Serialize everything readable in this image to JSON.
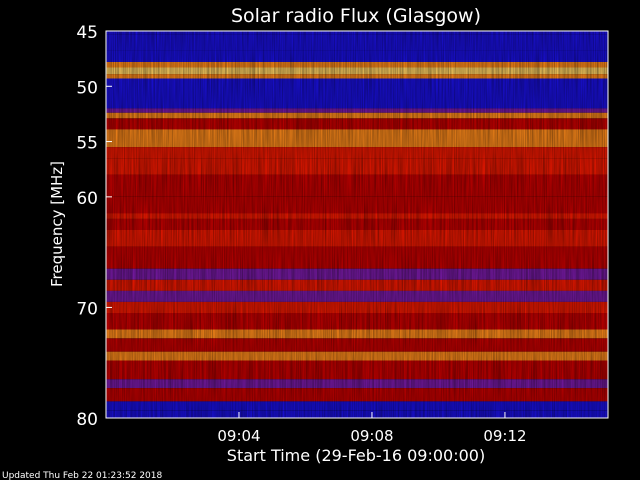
{
  "chart_data": {
    "type": "heatmap",
    "title": "Solar radio Flux (Glasgow)",
    "ylabel": "Frequency [MHz]",
    "xlabel": "Start Time (29-Feb-16 09:00:00)",
    "ylim": [
      80,
      45
    ],
    "xlim_minutes": [
      0,
      15.1
    ],
    "y_ticks": [
      45,
      50,
      55,
      60,
      70,
      80
    ],
    "x_ticks": [
      {
        "label": "09:04",
        "minutes": 4
      },
      {
        "label": "09:08",
        "minutes": 8
      },
      {
        "label": "09:12",
        "minutes": 12
      }
    ],
    "colors": {
      "background": "#000000",
      "low": "#1a10e0",
      "mid_low": "#7a1aa8",
      "mid": "#c80000",
      "mid_high": "#f01800",
      "high": "#ff8a1a",
      "peak": "#ffd060"
    },
    "bands": [
      {
        "f0": 44.8,
        "f1": 45.3,
        "level": "low"
      },
      {
        "f0": 45.3,
        "f1": 46.8,
        "level": "low"
      },
      {
        "f0": 46.8,
        "f1": 47.8,
        "level": "low"
      },
      {
        "f0": 47.8,
        "f1": 48.3,
        "level": "high"
      },
      {
        "f0": 48.3,
        "f1": 48.9,
        "level": "peak"
      },
      {
        "f0": 48.9,
        "f1": 49.3,
        "level": "high"
      },
      {
        "f0": 49.3,
        "f1": 52.0,
        "level": "low"
      },
      {
        "f0": 52.0,
        "f1": 52.4,
        "level": "mid_low"
      },
      {
        "f0": 52.4,
        "f1": 52.9,
        "level": "high"
      },
      {
        "f0": 52.9,
        "f1": 53.9,
        "level": "mid"
      },
      {
        "f0": 53.9,
        "f1": 55.5,
        "level": "high"
      },
      {
        "f0": 55.5,
        "f1": 56.5,
        "level": "mid_high"
      },
      {
        "f0": 56.5,
        "f1": 58.0,
        "level": "mid_high"
      },
      {
        "f0": 58.0,
        "f1": 60.0,
        "level": "mid"
      },
      {
        "f0": 60.0,
        "f1": 61.5,
        "level": "mid"
      },
      {
        "f0": 61.5,
        "f1": 62.0,
        "level": "mid_high"
      },
      {
        "f0": 62.0,
        "f1": 63.0,
        "level": "mid"
      },
      {
        "f0": 63.0,
        "f1": 64.5,
        "level": "mid_high"
      },
      {
        "f0": 64.5,
        "f1": 66.5,
        "level": "mid"
      },
      {
        "f0": 66.5,
        "f1": 67.5,
        "level": "mid_low"
      },
      {
        "f0": 67.5,
        "f1": 68.5,
        "level": "mid_high"
      },
      {
        "f0": 68.5,
        "f1": 69.5,
        "level": "mid_low"
      },
      {
        "f0": 69.5,
        "f1": 70.5,
        "level": "mid_high"
      },
      {
        "f0": 70.5,
        "f1": 72.0,
        "level": "mid"
      },
      {
        "f0": 72.0,
        "f1": 72.8,
        "level": "high"
      },
      {
        "f0": 72.8,
        "f1": 74.0,
        "level": "mid"
      },
      {
        "f0": 74.0,
        "f1": 74.8,
        "level": "high"
      },
      {
        "f0": 74.8,
        "f1": 76.5,
        "level": "mid"
      },
      {
        "f0": 76.5,
        "f1": 77.3,
        "level": "mid_low"
      },
      {
        "f0": 77.3,
        "f1": 78.5,
        "level": "mid"
      },
      {
        "f0": 78.5,
        "f1": 79.3,
        "level": "low"
      },
      {
        "f0": 79.3,
        "f1": 80.2,
        "level": "low"
      }
    ]
  },
  "footer": {
    "updated": "Updated Thu Feb 22 01:23:52 2018"
  }
}
